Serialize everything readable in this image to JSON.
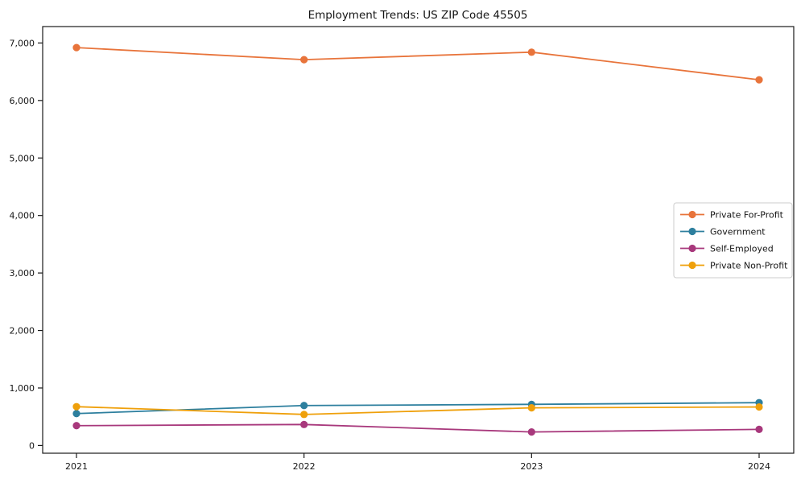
{
  "title": "Employment Trends: US ZIP Code 45505",
  "chart_data": {
    "type": "line",
    "title": "Employment Trends: US ZIP Code 45505",
    "xlabel": "",
    "ylabel": "",
    "x_labels": [
      "2021",
      "2022",
      "2023",
      "2024"
    ],
    "series": [
      {
        "name": "Private For-Profit",
        "color": "#e8743b",
        "values": [
          6920,
          6710,
          6840,
          6360
        ]
      },
      {
        "name": "Government",
        "color": "#2d7f9e",
        "values": [
          555,
          695,
          715,
          745
        ]
      },
      {
        "name": "Self-Employed",
        "color": "#a8387c",
        "values": [
          345,
          365,
          235,
          280
        ]
      },
      {
        "name": "Private Non-Profit",
        "color": "#efa00b",
        "values": [
          675,
          540,
          655,
          670
        ]
      }
    ],
    "y_ticks": [
      0,
      1000,
      2000,
      3000,
      4000,
      5000,
      6000,
      7000
    ],
    "y_tick_labels": [
      "0",
      "1,000",
      "2,000",
      "3,000",
      "4,000",
      "5,000",
      "6,000",
      "7,000"
    ],
    "ylim": [
      0,
      7000
    ],
    "grid": false,
    "legend_position": "center-right",
    "marker": "circle"
  },
  "legend": {
    "entries": [
      "Private For-Profit",
      "Government",
      "Self-Employed",
      "Private Non-Profit"
    ],
    "border_color": "#cccccc",
    "background": "#ffffff"
  },
  "style": {
    "spine_color": "#1a1a1a",
    "background": "#ffffff",
    "text_color": "#151515"
  }
}
